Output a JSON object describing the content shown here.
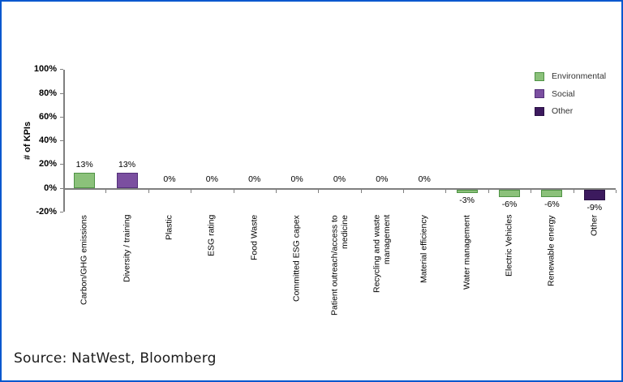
{
  "frame": {
    "border_color": "#0557CE",
    "background": "#FFFFFF"
  },
  "source_note": "Source: NatWest, Bloomberg",
  "chart_data": {
    "type": "bar",
    "title": "",
    "xlabel": "",
    "ylabel": "# of KPIs",
    "ylim": [
      -20,
      100
    ],
    "grid": false,
    "legend_position": "top-right",
    "axis_color": "#7F7F7F",
    "yticks": [
      {
        "v": 100,
        "label": "100%"
      },
      {
        "v": 80,
        "label": "80%"
      },
      {
        "v": 60,
        "label": "60%"
      },
      {
        "v": 40,
        "label": "40%"
      },
      {
        "v": 20,
        "label": "20%"
      },
      {
        "v": 0,
        "label": "0%"
      },
      {
        "v": -20,
        "label": "-20%"
      }
    ],
    "legend": [
      {
        "name": "Environmental",
        "fill": "#8BC17A",
        "border": "#4F9345"
      },
      {
        "name": "Social",
        "fill": "#7B4FA0",
        "border": "#533079"
      },
      {
        "name": "Other",
        "fill": "#3C1A5E",
        "border": "#2A1144"
      }
    ],
    "categories": [
      "Carbon/GHG emissions",
      "Diversity / training",
      "Plastic",
      "ESG rating",
      "Food Waste",
      "Committed ESG capex",
      "Patient outreach/access to\nmedicine",
      "Recycling and waste\nmanagement",
      "Material efficiency",
      "Water management",
      "Electric Vehicles",
      "Renewable energy",
      "Other"
    ],
    "values": [
      13,
      13,
      0,
      0,
      0,
      0,
      0,
      0,
      0,
      -3,
      -6,
      -6,
      -9
    ],
    "value_labels": [
      "13%",
      "13%",
      "0%",
      "0%",
      "0%",
      "0%",
      "0%",
      "0%",
      "0%",
      "-3%",
      "-6%",
      "-6%",
      "-9%"
    ],
    "bar_series": [
      "Environmental",
      "Social",
      null,
      null,
      null,
      null,
      null,
      null,
      null,
      "Environmental",
      "Environmental",
      "Environmental",
      "Other"
    ]
  }
}
